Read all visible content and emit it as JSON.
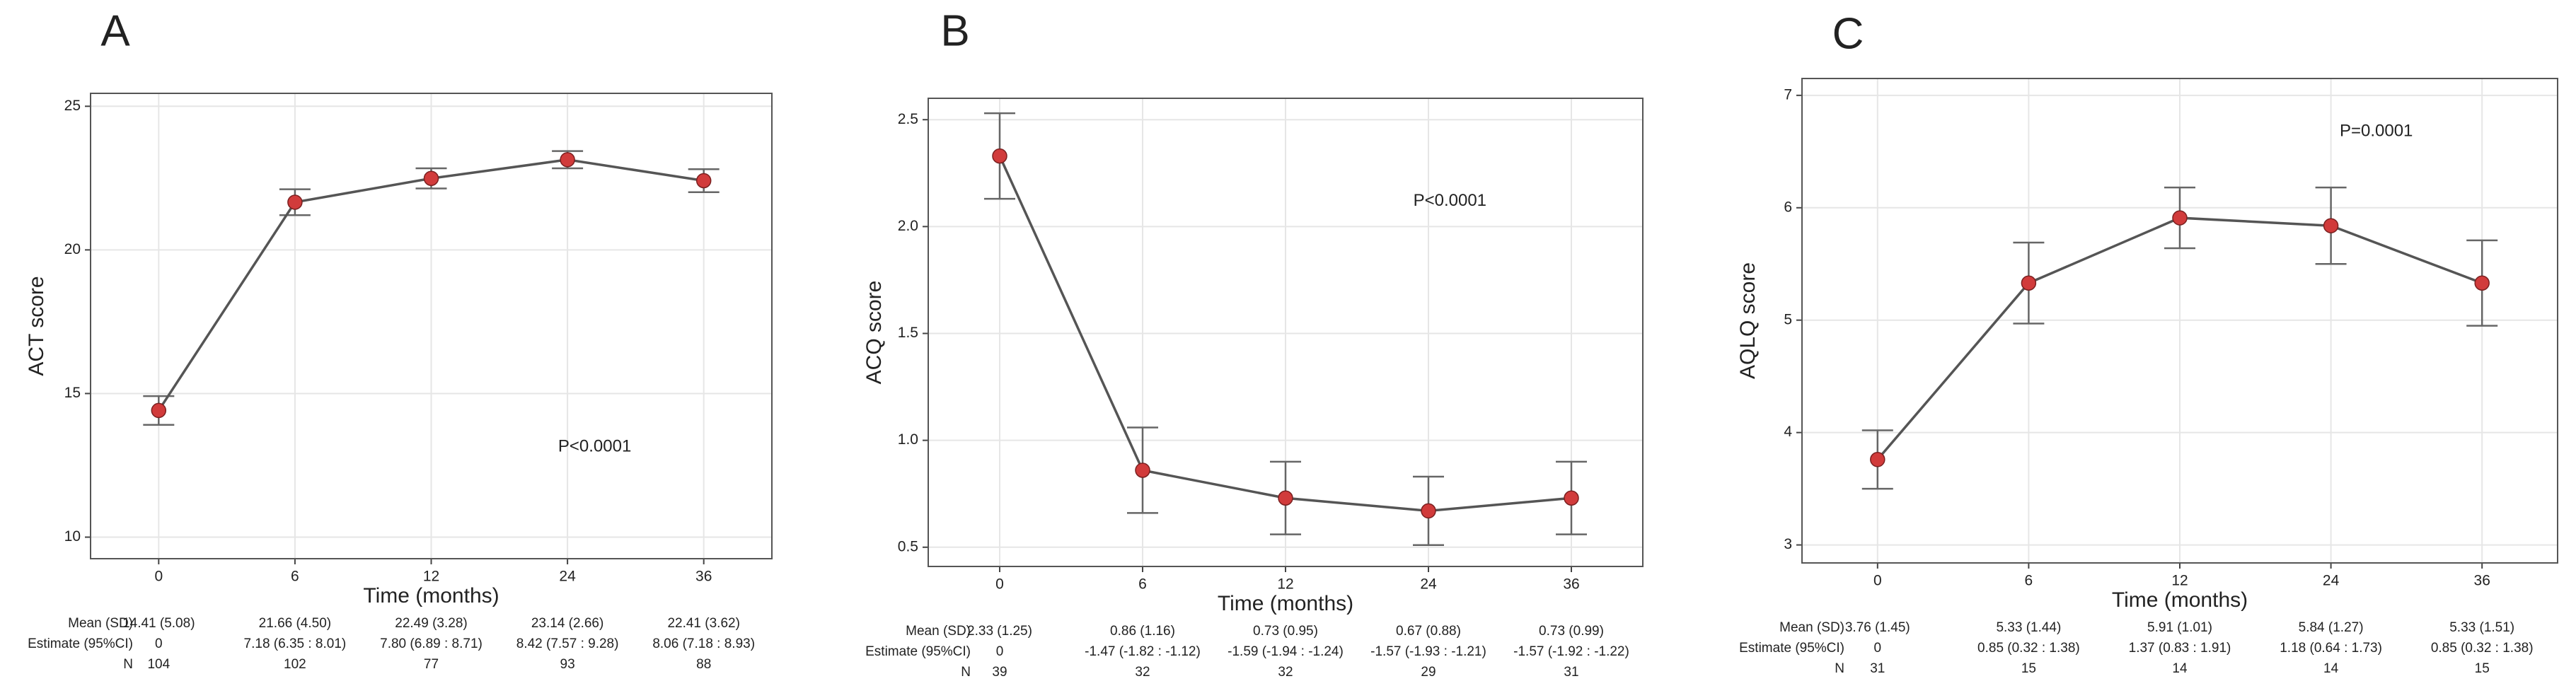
{
  "chart_data": [
    {
      "type": "line",
      "panel": "A",
      "ylabel": "ACT score",
      "xlabel": "Time (months)",
      "annotation": "P<0.0001",
      "categories": [
        "0",
        "6",
        "12",
        "24",
        "36"
      ],
      "values": [
        14.41,
        21.66,
        22.49,
        23.14,
        22.41
      ],
      "errors": [
        0.5,
        0.45,
        0.35,
        0.3,
        0.4
      ],
      "color": "#d13b3b",
      "line_color": "#555555",
      "ylim": [
        9.25,
        25.45
      ],
      "yticks": [
        10,
        15,
        20,
        25
      ],
      "grid": true,
      "table": {
        "rows": [
          [
            "Mean (SD)",
            "14.41 (5.08)",
            "21.66 (4.50)",
            "22.49 (3.28)",
            "23.14 (2.66)",
            "22.41 (3.62)"
          ],
          [
            "Estimate (95%CI)",
            "0",
            "7.18 (6.35 : 8.01)",
            "7.80 (6.89 : 8.71)",
            "8.42 (7.57 : 9.28)",
            "8.06 (7.18 : 8.93)"
          ],
          [
            "N",
            104,
            102,
            77,
            93,
            88
          ]
        ]
      }
    },
    {
      "type": "line",
      "panel": "B",
      "ylabel": "ACQ score",
      "xlabel": "Time (months)",
      "annotation": "P<0.0001",
      "categories": [
        "0",
        "6",
        "12",
        "24",
        "36"
      ],
      "values": [
        2.33,
        0.86,
        0.73,
        0.67,
        0.73
      ],
      "errors": [
        0.2,
        0.2,
        0.17,
        0.16,
        0.17
      ],
      "color": "#d13b3b",
      "line_color": "#555555",
      "ylim": [
        0.41,
        2.6
      ],
      "yticks": [
        0.5,
        {
          "value": 1,
          "label": "1.0"
        },
        1.5,
        {
          "value": 2,
          "label": "2.0"
        },
        2.5
      ],
      "grid": true,
      "table": {
        "rows": [
          [
            "Mean (SD)",
            "2.33 (1.25)",
            "0.86 (1.16)",
            "0.73 (0.95)",
            "0.67 (0.88)",
            "0.73 (0.99)"
          ],
          [
            "Estimate (95%CI)",
            "0",
            "-1.47 (-1.82 : -1.12)",
            "-1.59 (-1.94 : -1.24)",
            "-1.57 (-1.93 : -1.21)",
            "-1.57 (-1.92 : -1.22)"
          ],
          [
            "N",
            39,
            32,
            32,
            29,
            31
          ]
        ]
      }
    },
    {
      "type": "line",
      "panel": "C",
      "ylabel": "AQLQ score",
      "xlabel": "Time (months)",
      "annotation": "P=0.0001",
      "categories": [
        "0",
        "6",
        "12",
        "24",
        "36"
      ],
      "values": [
        3.76,
        5.33,
        5.91,
        5.84,
        5.33
      ],
      "errors": [
        0.26,
        0.36,
        0.27,
        0.34,
        0.38
      ],
      "color": "#d13b3b",
      "line_color": "#555555",
      "ylim": [
        2.84,
        7.15
      ],
      "yticks": [
        3,
        4,
        5,
        6,
        7
      ],
      "grid": true,
      "table": {
        "rows": [
          [
            "Mean (SD)",
            "3.76 (1.45)",
            "5.33 (1.44)",
            "5.91 (1.01)",
            "5.84 (1.27)",
            "5.33 (1.51)"
          ],
          [
            "Estimate (95%CI)",
            "0",
            "0.85 (0.32 : 1.38)",
            "1.37 (0.83 : 1.91)",
            "1.18 (0.64 : 1.73)",
            "0.85 (0.32 : 1.38)"
          ],
          [
            "N",
            31,
            15,
            14,
            14,
            15
          ]
        ]
      }
    }
  ]
}
